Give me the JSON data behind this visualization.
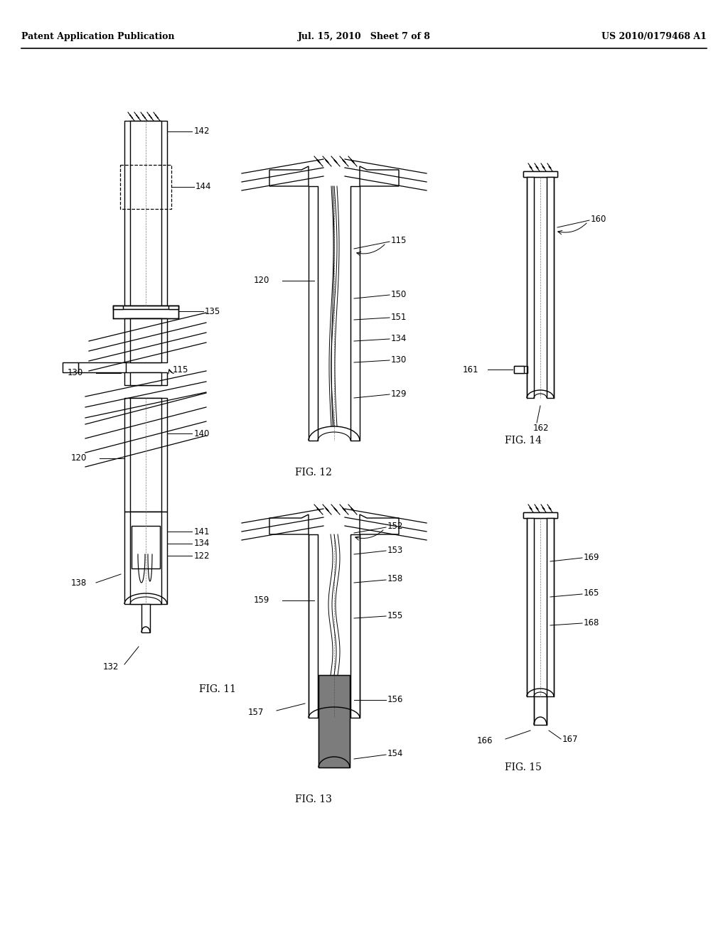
{
  "header_left": "Patent Application Publication",
  "header_center": "Jul. 15, 2010  Sheet 7 of 8",
  "header_right": "US 2010/0179468 A1",
  "background_color": "#ffffff",
  "line_color": "#000000",
  "fig_labels": {
    "fig11": "FIG. 11",
    "fig12": "FIG. 12",
    "fig13": "FIG. 13",
    "fig14": "FIG. 14",
    "fig15": "FIG. 15"
  }
}
